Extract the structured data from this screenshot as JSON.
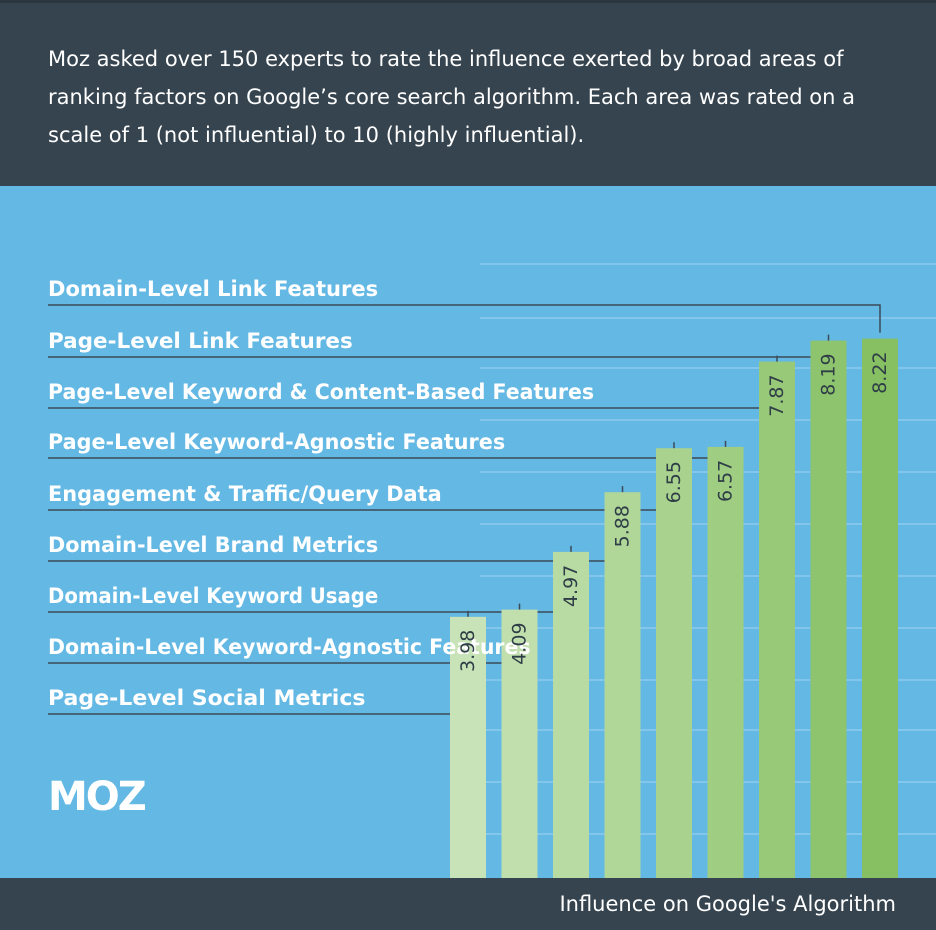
{
  "header": {
    "text": "Moz asked over 150 experts to rate the influence exerted by broad areas of ranking factors on Google’s core search algorithm. Each area was rated on a scale of 1 (not influential) to 10 (highly influential)."
  },
  "logo": {
    "text": "MOZ"
  },
  "footer": {
    "label": "Influence on Google's Algorithm"
  },
  "colors": {
    "header_bg": "#36444f",
    "chart_bg": "#64b8e4",
    "leader_line": "#3b4a56",
    "bar_lightest": "#c9e3b8",
    "bar_darkest": "#86c062"
  },
  "chart_data": {
    "type": "bar",
    "orientation": "vertical",
    "categories": [
      "Page-Level Social Metrics",
      "Domain-Level Keyword-Agnostic Features",
      "Domain-Level Keyword Usage",
      "Domain-Level Brand Metrics",
      "Engagement & Traffic/Query Data",
      "Page-Level Keyword-Agnostic Features",
      "Page-Level Keyword & Content-Based Features",
      "Page-Level Link Features",
      "Domain-Level Link Features"
    ],
    "values": [
      3.98,
      4.09,
      4.97,
      5.88,
      6.55,
      6.57,
      7.87,
      8.19,
      8.22
    ],
    "value_labels": [
      "3.98",
      "4.09",
      "4.97",
      "5.88",
      "6.55",
      "6.57",
      "7.87",
      "8.19",
      "8.22"
    ],
    "ylim": [
      0,
      10
    ],
    "title": "",
    "xlabel": "Influence on Google's Algorithm",
    "ylabel": "",
    "grid": true,
    "legend": "none"
  }
}
